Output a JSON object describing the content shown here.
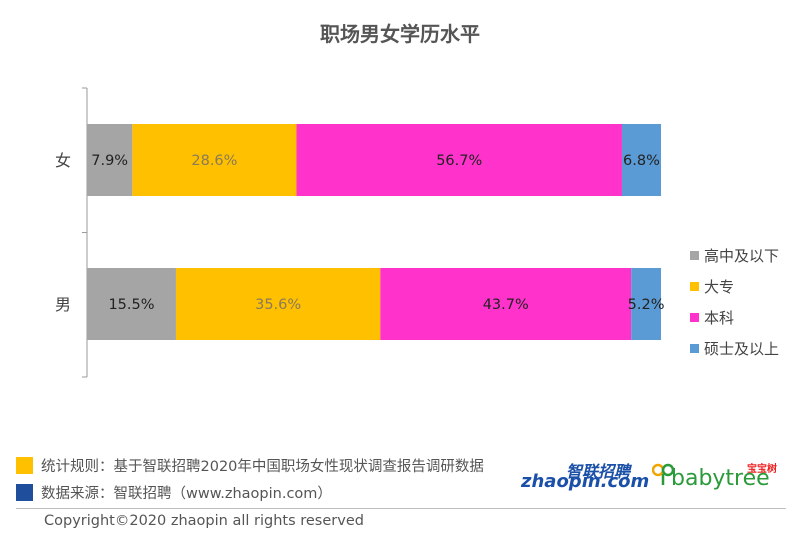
{
  "chart_data": {
    "type": "bar",
    "orientation": "horizontal",
    "stacked": true,
    "percent": true,
    "title": "职场男女学历水平",
    "categories": [
      "女",
      "男"
    ],
    "series": [
      {
        "name": "高中及以下",
        "values": [
          7.9,
          15.5
        ],
        "labels": [
          "7.9%",
          "15.5%"
        ],
        "color": "#a5a5a5",
        "label_color": "#222222"
      },
      {
        "name": "大专",
        "values": [
          28.6,
          35.6
        ],
        "labels": [
          "28.6%",
          "35.6%"
        ],
        "color": "#ffc000",
        "label_color": "#8a7a5a"
      },
      {
        "name": "本科",
        "values": [
          56.7,
          43.7
        ],
        "labels": [
          "56.7%",
          "43.7%"
        ],
        "color": "#ff33cc",
        "label_color": "#222222"
      },
      {
        "name": "硕士及以上",
        "values": [
          6.8,
          5.2
        ],
        "labels": [
          "6.8%",
          "5.2%"
        ],
        "color": "#5b9bd5",
        "label_color": "#222222"
      }
    ],
    "xlim": [
      0,
      100
    ],
    "grid": false,
    "legend_position": "right"
  },
  "footer": {
    "note_rules": "统计规则：基于智联招聘2020年中国职场女性现状调查报告调研数据",
    "note_rules_color": "#ffc000",
    "note_source": "数据来源：智联招聘（www.zhaopin.com）",
    "note_source_color": "#1f4e9c",
    "copyright": "Copyright©2020 zhaopin all rights reserved"
  },
  "brands": {
    "zhaopin_cn": "智联招聘",
    "zhaopin_en": "zhaopin.com",
    "babytree_cn": "宝宝树",
    "babytree_en": "babytree"
  }
}
